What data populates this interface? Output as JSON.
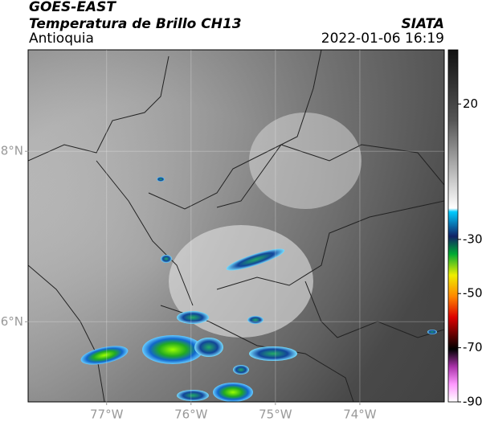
{
  "header": {
    "satellite": "GOES-EAST",
    "product": "Temperatura de Brillo CH13",
    "region": "Antioquia",
    "source": "SIATA",
    "datetime": "2022-01-06 16:19"
  },
  "map": {
    "xlim": [
      -77.93,
      -73.0
    ],
    "ylim": [
      5.06,
      9.19
    ],
    "xticks": [
      {
        "value": -77,
        "label": "77°W"
      },
      {
        "value": -76,
        "label": "76°W"
      },
      {
        "value": -75,
        "label": "75°W"
      },
      {
        "value": -74,
        "label": "74°W"
      }
    ],
    "yticks": [
      {
        "value": 8,
        "label": "8°N"
      },
      {
        "value": 6,
        "label": "6°N"
      }
    ]
  },
  "colorbar": {
    "lim": [
      -90,
      40
    ],
    "ticks": [
      20,
      -30,
      -50,
      -70,
      -90
    ]
  }
}
